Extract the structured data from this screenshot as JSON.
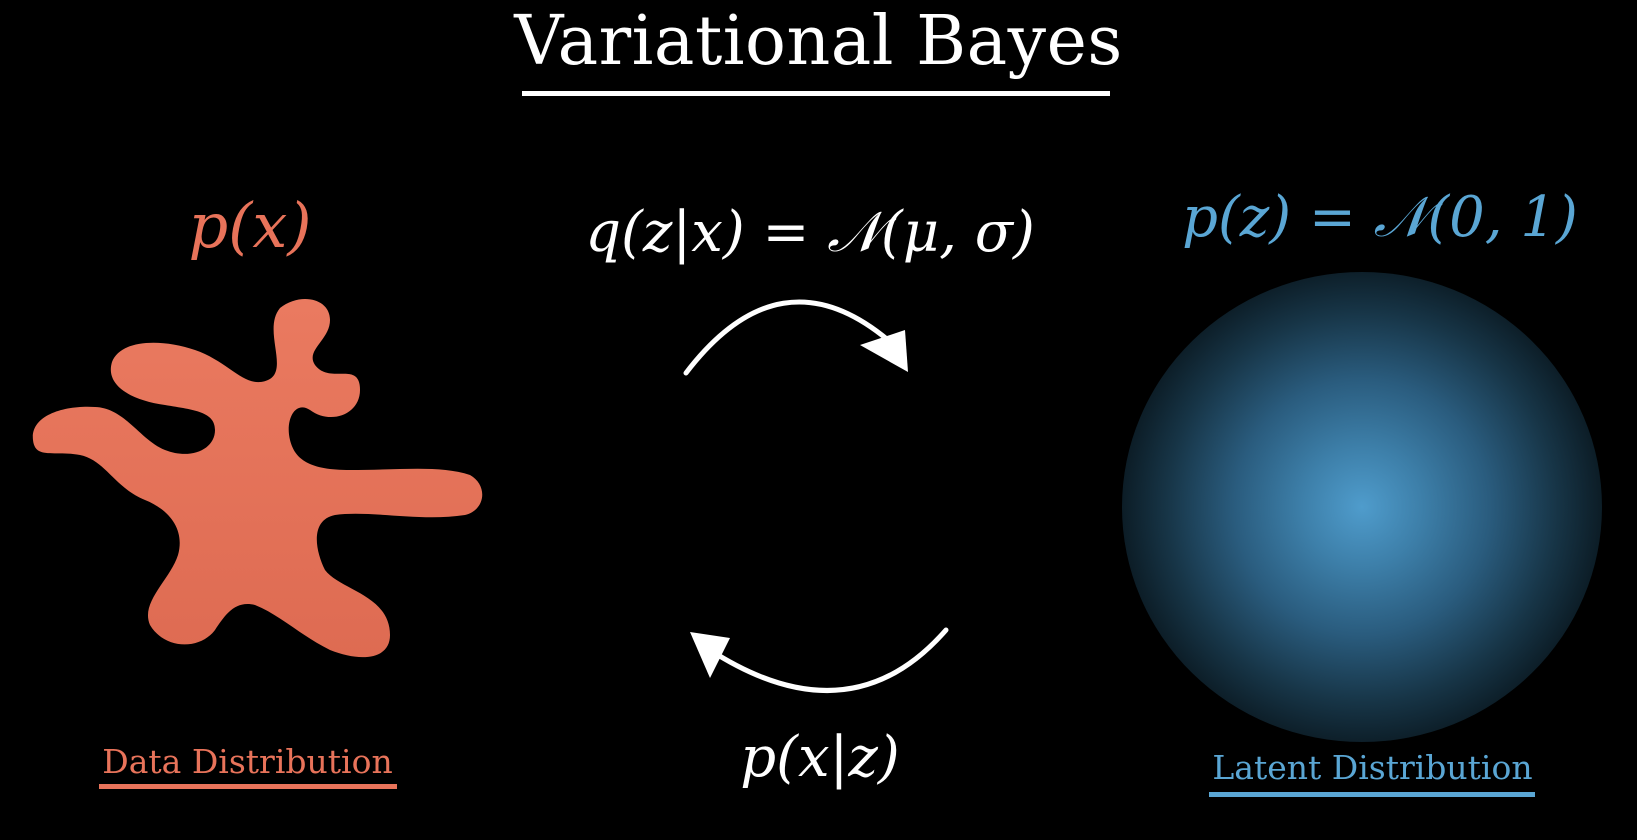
{
  "title": "Variational Bayes",
  "data_side": {
    "formula": "p(x)",
    "caption": "Data Distribution",
    "color": "#e8735a"
  },
  "encoder": {
    "formula": "q(z|x) = 𝒩(μ, σ)"
  },
  "decoder": {
    "formula": "p(x|z)"
  },
  "latent_side": {
    "formula": "p(z) = 𝒩(0, 1)",
    "caption": "Latent Distribution",
    "color": "#5aa6d4"
  },
  "icons": {
    "data_shape": "irregular-blob",
    "latent_shape": "gaussian-glow",
    "encode_arrow": "curved-arrow-right",
    "decode_arrow": "curved-arrow-left"
  }
}
